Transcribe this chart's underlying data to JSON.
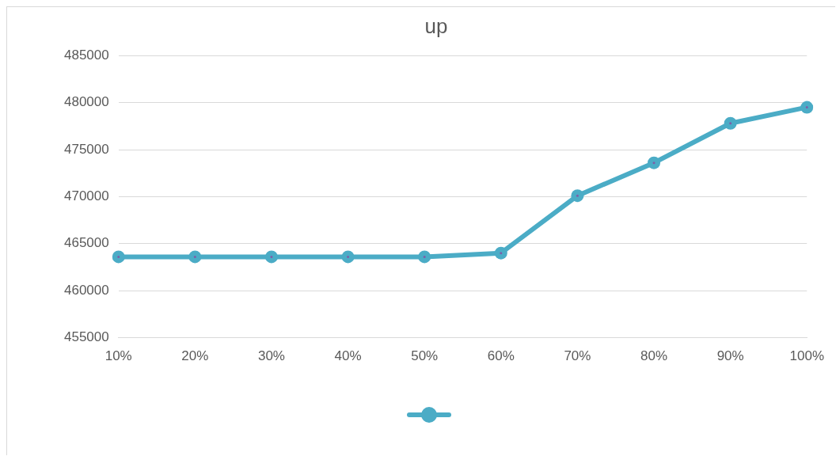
{
  "chart_data": {
    "type": "line",
    "title": "up",
    "categories": [
      "10%",
      "20%",
      "30%",
      "40%",
      "50%",
      "60%",
      "70%",
      "80%",
      "90%",
      "100%"
    ],
    "series": [
      {
        "color": "#4bacc6",
        "values": [
          463600,
          463600,
          463600,
          463600,
          463600,
          464000,
          470100,
          473600,
          477800,
          479500
        ]
      }
    ],
    "ylim": [
      455000,
      485000
    ],
    "yticks": [
      455000,
      460000,
      465000,
      470000,
      475000,
      480000,
      485000
    ],
    "grid": "y",
    "marker": "circle",
    "line_style": "solid"
  }
}
